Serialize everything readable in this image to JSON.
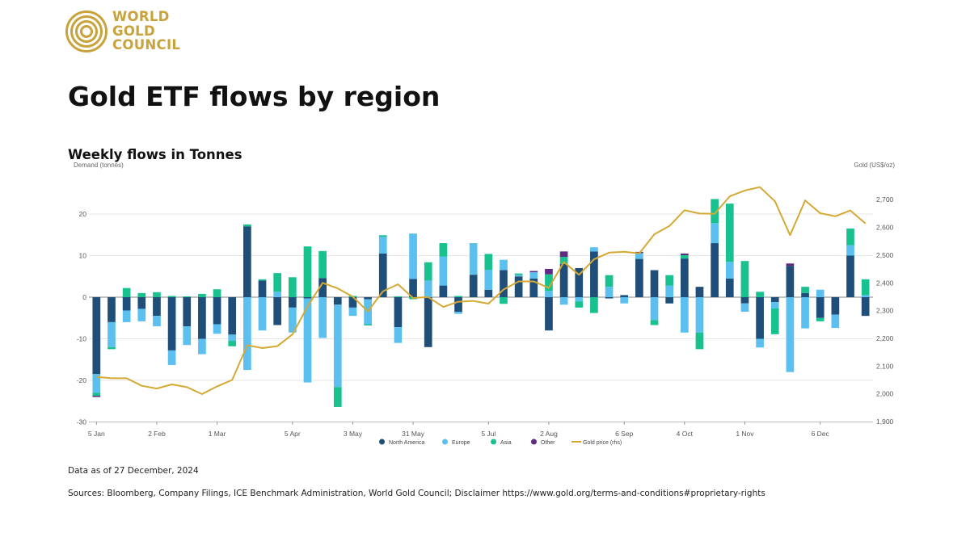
{
  "brand": {
    "lines": [
      "WORLD",
      "GOLD",
      "COUNCIL"
    ],
    "color": "#c8a23a"
  },
  "title": "Gold ETF flows by region",
  "subtitle": "Weekly flows in Tonnes",
  "footnote_date": "Data as of 27 December, 2024",
  "footnote_sources": "Sources: Bloomberg, Company Filings, ICE Benchmark Administration, World Gold Council; Disclaimer https://www.gold.org/terms-and-conditions#proprietary-rights",
  "chart_data": {
    "type": "bar",
    "stacked": true,
    "ylabel": "Demand (tonnes)",
    "y2label": "Gold (US$/oz)",
    "ylim": [
      -30,
      30
    ],
    "y_ticks": [
      -30,
      -20,
      -10,
      0,
      10,
      20
    ],
    "y2lim": [
      1900,
      2750
    ],
    "y2_ticks": [
      1900,
      2000,
      2100,
      2200,
      2300,
      2400,
      2500,
      2600,
      2700
    ],
    "x_tick_labels": [
      {
        "label": "5 Jan",
        "week": 0
      },
      {
        "label": "2 Feb",
        "week": 4
      },
      {
        "label": "1 Mar",
        "week": 8
      },
      {
        "label": "5 Apr",
        "week": 13
      },
      {
        "label": "3 May",
        "week": 17
      },
      {
        "label": "31 May",
        "week": 21
      },
      {
        "label": "5 Jul",
        "week": 26
      },
      {
        "label": "2 Aug",
        "week": 30
      },
      {
        "label": "6 Sep",
        "week": 35
      },
      {
        "label": "4 Oct",
        "week": 39
      },
      {
        "label": "1 Nov",
        "week": 43
      },
      {
        "label": "6 Dec",
        "week": 48
      }
    ],
    "weeks": 52,
    "grid": true,
    "legend_position": "bottom",
    "series": [
      {
        "name": "North America",
        "color": "#1f4e79",
        "values": [
          -18.5,
          -6,
          -3.2,
          -2.8,
          -4.5,
          -12.8,
          -7,
          -10,
          -6.5,
          -9,
          17,
          4,
          -6.7,
          -2.5,
          -0.3,
          4.6,
          -1.8,
          -2.5,
          -0.5,
          10.5,
          -7.2,
          4.4,
          -12,
          2.8,
          -3.5,
          5.4,
          1.8,
          6.5,
          5,
          4.5,
          -8,
          8,
          7,
          11,
          -0.3,
          0.5,
          9.2,
          6.5,
          -1.5,
          9.3,
          2.5,
          13,
          4.5,
          -1.5,
          -10,
          -1.2,
          7.5,
          1,
          -5,
          -4.2,
          10,
          -4.5
        ]
      },
      {
        "name": "Europe",
        "color": "#5bc0f0",
        "values": [
          -4.5,
          -6,
          -2.8,
          -3,
          -2.5,
          -3.5,
          -4.5,
          -3.7,
          -2.3,
          -1.5,
          -17.5,
          -8,
          1.3,
          -6,
          -20.2,
          -9.8,
          -19.8,
          -2,
          -6,
          4,
          -3.8,
          10.9,
          4,
          7,
          -0.5,
          7.6,
          4.8,
          2.5,
          0.3,
          1.5,
          1.5,
          -1.8,
          -1,
          1,
          2.5,
          -1.5,
          1.4,
          -5.5,
          2.8,
          -8.5,
          -8.5,
          4.8,
          4,
          -2,
          -2.1,
          -1.5,
          -18,
          -7.5,
          1.8,
          -3.2,
          2.5,
          0.5
        ]
      },
      {
        "name": "Asia",
        "color": "#19c18e",
        "values": [
          -0.7,
          -0.5,
          2.2,
          1,
          1.2,
          0.3,
          0.2,
          0.8,
          1.9,
          -1.3,
          0.5,
          0.3,
          4.5,
          4.8,
          12.2,
          6.5,
          -4.8,
          0.3,
          -0.3,
          0.4,
          0.2,
          -0.5,
          4.4,
          3.2,
          0.3,
          0,
          3.8,
          -1.6,
          0.4,
          0,
          4,
          1.7,
          -1.5,
          -3.8,
          2.8,
          0,
          0,
          -1.2,
          2.5,
          0.8,
          -4,
          5.8,
          14,
          8.7,
          1.3,
          -6.2,
          0,
          1.5,
          -0.8,
          0,
          4,
          3.8
        ]
      },
      {
        "name": "Other",
        "color": "#5e2a82",
        "values": [
          -0.3,
          0,
          0,
          0,
          0,
          0,
          0,
          0,
          0,
          0,
          0,
          0,
          0,
          0,
          0,
          0,
          0,
          0,
          0,
          0,
          0,
          0,
          0,
          0,
          0,
          0,
          0,
          0,
          0,
          0.3,
          1.3,
          1.3,
          0,
          0,
          0,
          0,
          0.3,
          0,
          0,
          0.4,
          0,
          0,
          0,
          0,
          0,
          0,
          0.6,
          0,
          0,
          0,
          0,
          0
        ]
      }
    ],
    "gold_price": {
      "name": "Gold price (rhs)",
      "color": "#d4a933",
      "values": [
        2061,
        2056,
        2056,
        2029,
        2019,
        2034,
        2024,
        1999,
        2027,
        2050,
        2175,
        2165,
        2172,
        2214,
        2315,
        2400,
        2380,
        2350,
        2297,
        2370,
        2395,
        2345,
        2349,
        2313,
        2332,
        2335,
        2325,
        2376,
        2405,
        2405,
        2382,
        2475,
        2429,
        2485,
        2509,
        2512,
        2506,
        2575,
        2605,
        2662,
        2650,
        2649,
        2712,
        2733,
        2745,
        2694,
        2572,
        2697,
        2651,
        2640,
        2661,
        2614
      ]
    }
  }
}
